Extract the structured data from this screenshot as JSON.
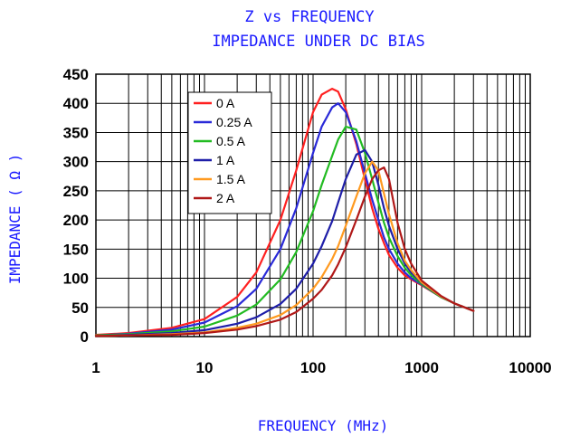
{
  "chart_data": {
    "type": "line",
    "title": "Z vs FREQUENCY",
    "subtitle": "IMPEDANCE UNDER DC BIAS",
    "xlabel": "FREQUENCY (MHz)",
    "ylabel": "IMPEDANCE ( Ω )",
    "x_scale": "log",
    "xlim": [
      1,
      10000
    ],
    "ylim": [
      0,
      450
    ],
    "x_ticks": [
      "1",
      "10",
      "100",
      "1000",
      "10000"
    ],
    "y_ticks": [
      "0",
      "50",
      "100",
      "150",
      "200",
      "250",
      "300",
      "350",
      "400",
      "450"
    ],
    "grid": true,
    "legend_position": "top-left",
    "x": [
      1,
      2,
      5,
      10,
      20,
      30,
      50,
      70,
      100,
      120,
      150,
      170,
      200,
      250,
      300,
      350,
      400,
      450,
      500,
      600,
      700,
      800,
      1000,
      1500,
      2000,
      3000
    ],
    "series": [
      {
        "name": "0 A",
        "color": "#ff2020",
        "values": [
          3,
          6,
          15,
          30,
          68,
          110,
          200,
          285,
          385,
          415,
          425,
          420,
          390,
          330,
          270,
          220,
          185,
          160,
          140,
          118,
          105,
          98,
          88,
          68,
          57,
          44
        ]
      },
      {
        "name": "0.25 A",
        "color": "#2a2ad8",
        "values": [
          2,
          5,
          12,
          24,
          52,
          82,
          150,
          220,
          315,
          360,
          393,
          400,
          385,
          335,
          280,
          235,
          200,
          170,
          150,
          125,
          110,
          100,
          89,
          68,
          57,
          44
        ]
      },
      {
        "name": "0.5 A",
        "color": "#22bb22",
        "values": [
          2,
          4,
          9,
          17,
          36,
          55,
          98,
          145,
          215,
          260,
          310,
          338,
          360,
          355,
          315,
          270,
          230,
          195,
          170,
          138,
          118,
          105,
          90,
          68,
          57,
          44
        ]
      },
      {
        "name": "1 A",
        "color": "#1e1ea8",
        "values": [
          1,
          3,
          6,
          11,
          22,
          33,
          56,
          82,
          125,
          155,
          198,
          230,
          270,
          312,
          320,
          300,
          260,
          220,
          190,
          150,
          125,
          110,
          92,
          69,
          57,
          44
        ]
      },
      {
        "name": "1.5 A",
        "color": "#ff9a20",
        "values": [
          1,
          2,
          4,
          7,
          15,
          22,
          37,
          54,
          82,
          102,
          133,
          155,
          190,
          240,
          280,
          300,
          285,
          245,
          210,
          160,
          130,
          114,
          93,
          69,
          57,
          44
        ]
      },
      {
        "name": "2 A",
        "color": "#b01818",
        "values": [
          1,
          2,
          3,
          6,
          12,
          18,
          29,
          42,
          65,
          80,
          105,
          124,
          153,
          200,
          240,
          270,
          285,
          290,
          270,
          195,
          150,
          125,
          96,
          70,
          57,
          44
        ]
      }
    ]
  }
}
